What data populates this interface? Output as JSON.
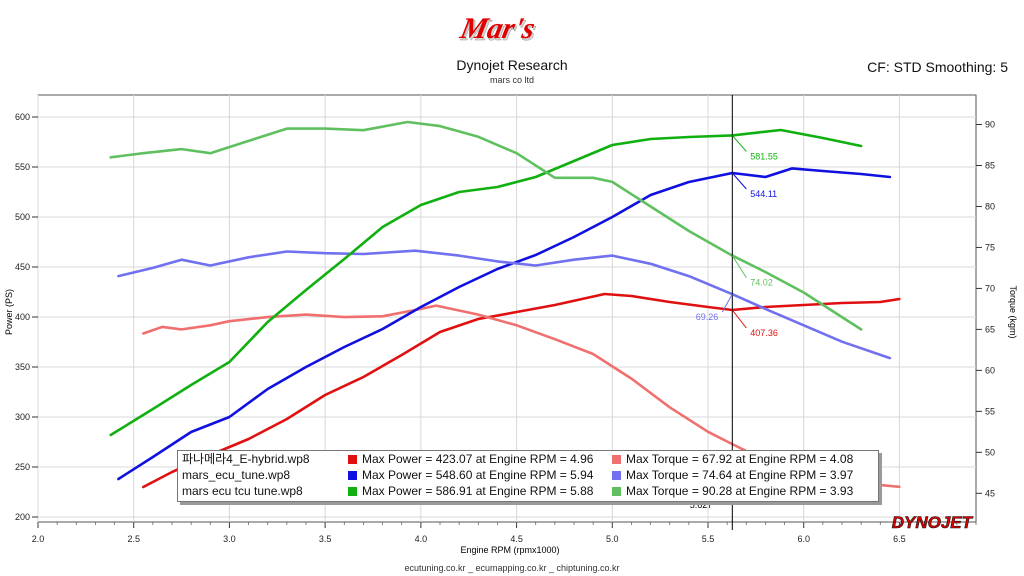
{
  "header": {
    "logo_text": "Mar's",
    "title": "Dynojet Research",
    "subtitle": "mars co ltd",
    "correction": "CF: STD Smoothing: 5"
  },
  "footer": "ecutuning.co.kr _ ecumapping.co.kr _ chiptuning.co.kr",
  "brand": "DYNOJET",
  "legend": [
    {
      "name": "파나메라4_E-hybrid.wp8",
      "power_text": "Max Power = 423.07 at Engine RPM = 4.96",
      "torque_text": "Max Torque = 67.92 at Engine RPM = 4.08",
      "power_color": "#e01010",
      "torque_color": "#f07070"
    },
    {
      "name": "mars_ecu_tune.wp8",
      "power_text": "Max Power = 548.60 at Engine RPM = 5.94",
      "torque_text": "Max Torque = 74.64 at Engine RPM = 3.97",
      "power_color": "#1010e0",
      "torque_color": "#7070f0"
    },
    {
      "name": "mars ecu tcu tune.wp8",
      "power_text": "Max Power = 586.91 at Engine RPM = 5.88",
      "torque_text": "Max Torque = 90.28 at Engine RPM = 3.93",
      "power_color": "#10b010",
      "torque_color": "#60c060"
    }
  ],
  "chart_data": {
    "type": "line",
    "xlabel": "Engine RPM (rpmx1000)",
    "ylabel": "Power (PS)",
    "y2label": "Torque (kgm)",
    "xlim": [
      2.0,
      6.9
    ],
    "ylim": [
      195,
      622
    ],
    "y2lim": [
      41.5,
      93.6
    ],
    "x_ticks": [
      "2.0",
      "2.5",
      "3.0",
      "3.5",
      "4.0",
      "4.5",
      "5.0",
      "5.5",
      "6.0",
      "6.5"
    ],
    "y_ticks": [
      "200",
      "250",
      "300",
      "350",
      "400",
      "450",
      "500",
      "550",
      "600"
    ],
    "y2_ticks": [
      "45",
      "50",
      "55",
      "60",
      "65",
      "70",
      "75",
      "80",
      "85",
      "90"
    ],
    "cursor": {
      "x": 5.627,
      "label": "5.627"
    },
    "annotations": [
      {
        "text": "581.55",
        "color": "#10b010"
      },
      {
        "text": "544.11",
        "color": "#1010e0"
      },
      {
        "text": "74.02",
        "color": "#60c060"
      },
      {
        "text": "69.26",
        "color": "#7070f0"
      },
      {
        "text": "407.36",
        "color": "#e01010"
      }
    ],
    "series": [
      {
        "name": "파나메라4_E-hybrid.wp8 Power",
        "axis": "left",
        "color": "#e01010",
        "x": [
          2.55,
          2.7,
          2.9,
          3.1,
          3.3,
          3.5,
          3.7,
          3.9,
          4.1,
          4.3,
          4.5,
          4.7,
          4.96,
          5.1,
          5.3,
          5.5,
          5.627,
          5.8,
          6.0,
          6.2,
          6.4,
          6.5
        ],
        "y": [
          230,
          245,
          262,
          278,
          298,
          322,
          340,
          362,
          385,
          398,
          405,
          412,
          423,
          421,
          415,
          410,
          407,
          410,
          412,
          414,
          415,
          418
        ]
      },
      {
        "name": "파나메라4_E-hybrid.wp8 Torque",
        "axis": "right",
        "color": "#f07070",
        "x": [
          2.55,
          2.65,
          2.75,
          2.9,
          3.0,
          3.2,
          3.4,
          3.6,
          3.8,
          4.0,
          4.08,
          4.3,
          4.5,
          4.7,
          4.9,
          5.1,
          5.3,
          5.5,
          5.627,
          5.8,
          6.0,
          6.2,
          6.4,
          6.5
        ],
        "y": [
          64.5,
          65.3,
          65.0,
          65.5,
          66.0,
          66.5,
          66.8,
          66.5,
          66.6,
          67.5,
          67.9,
          66.8,
          65.5,
          63.8,
          62.0,
          59.0,
          55.5,
          52.5,
          51.0,
          49.0,
          47.5,
          46.5,
          46.0,
          45.8
        ]
      },
      {
        "name": "mars_ecu_tune.wp8 Power",
        "axis": "left",
        "color": "#1010e0",
        "x": [
          2.42,
          2.6,
          2.8,
          3.0,
          3.2,
          3.4,
          3.6,
          3.8,
          4.0,
          4.2,
          4.4,
          4.6,
          4.8,
          5.0,
          5.2,
          5.4,
          5.627,
          5.8,
          5.94,
          6.1,
          6.3,
          6.45
        ],
        "y": [
          238,
          260,
          285,
          300,
          328,
          350,
          370,
          388,
          410,
          430,
          448,
          462,
          480,
          500,
          522,
          535,
          544,
          540,
          548.6,
          546,
          543,
          540
        ]
      },
      {
        "name": "mars_ecu_tune.wp8 Torque",
        "axis": "right",
        "color": "#7070f0",
        "x": [
          2.42,
          2.6,
          2.75,
          2.9,
          3.1,
          3.3,
          3.5,
          3.7,
          3.97,
          4.2,
          4.4,
          4.6,
          4.8,
          5.0,
          5.2,
          5.4,
          5.627,
          5.8,
          6.0,
          6.2,
          6.45
        ],
        "y": [
          71.5,
          72.5,
          73.5,
          72.8,
          73.8,
          74.5,
          74.3,
          74.2,
          74.6,
          74.0,
          73.3,
          72.8,
          73.5,
          74.0,
          73.0,
          71.5,
          69.3,
          67.5,
          65.5,
          63.5,
          61.5
        ]
      },
      {
        "name": "mars ecu tcu tune.wp8 Power",
        "axis": "left",
        "color": "#10b010",
        "x": [
          2.38,
          2.6,
          2.8,
          3.0,
          3.2,
          3.4,
          3.6,
          3.8,
          4.0,
          4.2,
          4.4,
          4.6,
          4.8,
          5.0,
          5.2,
          5.4,
          5.627,
          5.88,
          6.1,
          6.3
        ],
        "y": [
          282,
          308,
          332,
          355,
          395,
          427,
          458,
          490,
          512,
          525,
          530,
          540,
          556,
          572,
          578,
          580,
          581.6,
          587,
          579,
          571
        ]
      },
      {
        "name": "mars ecu tcu tune.wp8 Torque",
        "axis": "right",
        "color": "#60c060",
        "x": [
          2.38,
          2.55,
          2.75,
          2.9,
          3.1,
          3.3,
          3.5,
          3.7,
          3.93,
          4.1,
          4.3,
          4.5,
          4.7,
          4.9,
          5.0,
          5.2,
          5.4,
          5.627,
          5.8,
          6.0,
          6.2,
          6.3
        ],
        "y": [
          86.0,
          86.5,
          87.0,
          86.5,
          88.0,
          89.5,
          89.5,
          89.3,
          90.3,
          89.8,
          88.5,
          86.5,
          83.5,
          83.5,
          83.0,
          80.0,
          77.0,
          74.0,
          72.0,
          69.5,
          66.5,
          65.0
        ]
      }
    ]
  }
}
